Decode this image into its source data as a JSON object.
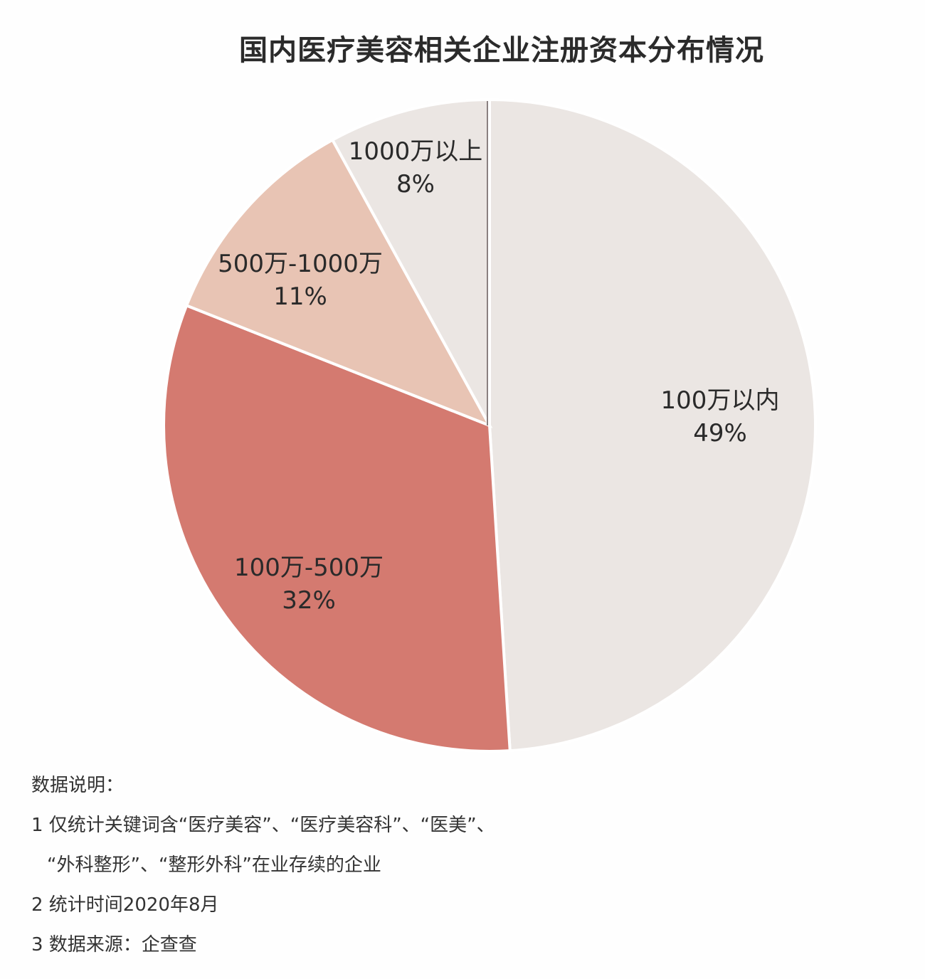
{
  "title": "国内医疗美容相关企业注册资本分布情况",
  "chart_data": {
    "type": "pie",
    "title": "国内医疗美容相关企业注册资本分布情况",
    "start_angle_deg": 0,
    "direction": "clockwise",
    "slices": [
      {
        "label": "100万以内",
        "value": 49,
        "pct_label": "49%",
        "color": "#ebe6e3"
      },
      {
        "label": "100万-500万",
        "value": 32,
        "pct_label": "32%",
        "color": "#d47a70"
      },
      {
        "label": "500万-1000万",
        "value": 11,
        "pct_label": "11%",
        "color": "#e8c4b4"
      },
      {
        "label": "1000万以上",
        "value": 8,
        "pct_label": "8%",
        "color": "#ebe6e3"
      }
    ]
  },
  "labels": [
    {
      "name": "100万以内",
      "pct": "49%"
    },
    {
      "name": "100万-500万",
      "pct": "32%"
    },
    {
      "name": "500万-1000万",
      "pct": "11%"
    },
    {
      "name": "1000万以上",
      "pct": "8%"
    }
  ],
  "notes": {
    "heading": "数据说明：",
    "line1a": "1 仅统计关键词含“医疗美容”、“医疗美容科”、“医美”、",
    "line1b": "“外科整形”、“整形外科”在业存续的企业",
    "line2": "2 统计时间2020年8月",
    "line3": "3 数据来源：企查查"
  }
}
